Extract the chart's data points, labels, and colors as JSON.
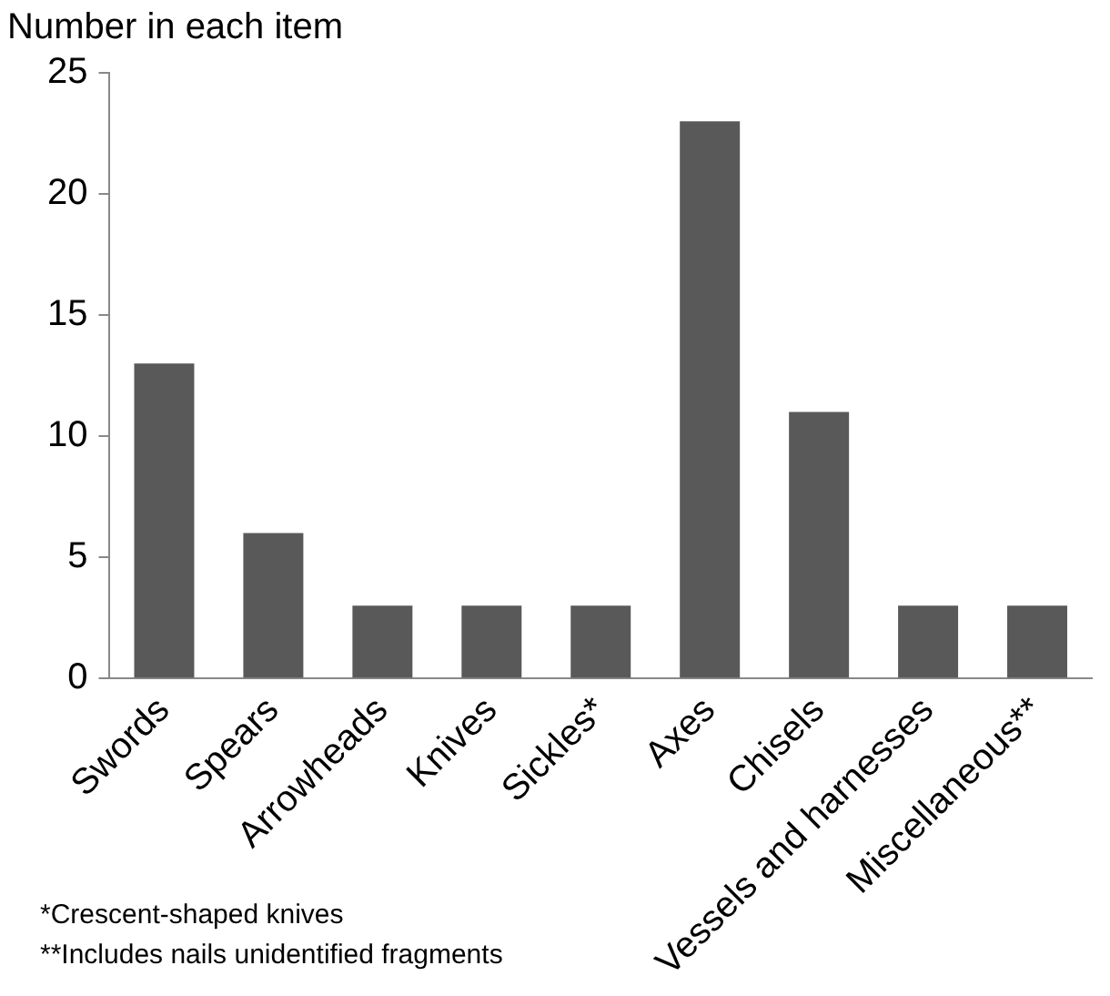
{
  "chart_data": {
    "type": "bar",
    "ylabel": "Number in each item",
    "categories": [
      "Swords",
      "Spears",
      "Arrowheads",
      "Knives",
      "Sickles*",
      "Axes",
      "Chisels",
      "Vessels and harnesses",
      "Miscellaneous**"
    ],
    "values": [
      13,
      6,
      3,
      3,
      3,
      23,
      11,
      3,
      3
    ],
    "color": "#595959",
    "ylim": [
      0,
      25
    ],
    "yticks": [
      0,
      5,
      10,
      15,
      20,
      25
    ],
    "grid": false,
    "legend": false,
    "annotations": [
      "*Crescent-shaped knives",
      "**Includes nails unidentified fragments"
    ]
  }
}
